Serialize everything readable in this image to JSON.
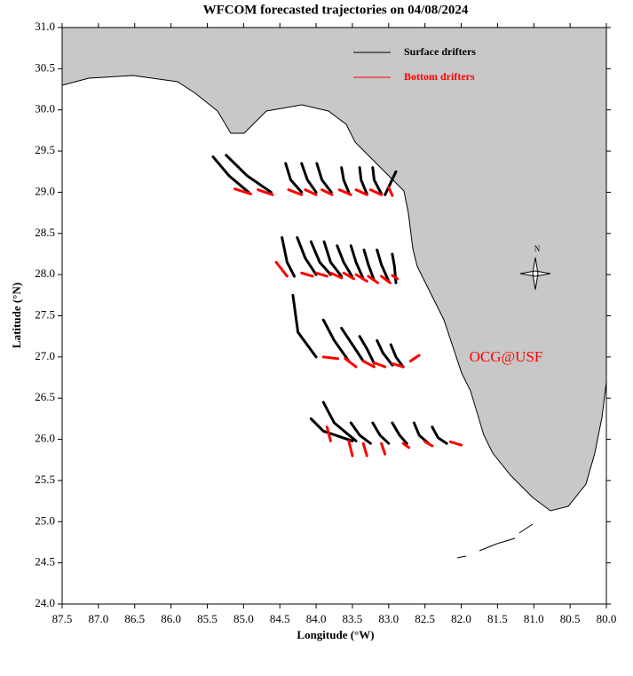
{
  "chart_data": {
    "type": "trajectory",
    "title": "WFCOM forecasted trajectories on 04/08/2024",
    "x_label": "Longitude (°W)",
    "y_label": "Latitude (°N)",
    "xlim": [
      87.5,
      80.0
    ],
    "ylim": [
      24.0,
      31.0
    ],
    "xticks": [
      {
        "value": 87.5,
        "label": "87.5"
      },
      {
        "value": 87,
        "label": "87.0"
      },
      {
        "value": 86.5,
        "label": "86.5"
      },
      {
        "value": 86,
        "label": "86.0"
      },
      {
        "value": 85.5,
        "label": "85.5"
      },
      {
        "value": 85,
        "label": "85.0"
      },
      {
        "value": 84.5,
        "label": "84.5"
      },
      {
        "value": 84,
        "label": "84.0"
      },
      {
        "value": 83.5,
        "label": "83.5"
      },
      {
        "value": 83,
        "label": "83.0"
      },
      {
        "value": 82.5,
        "label": "82.5"
      },
      {
        "value": 82,
        "label": "82.0"
      },
      {
        "value": 81.5,
        "label": "81.5"
      },
      {
        "value": 81,
        "label": "81.0"
      },
      {
        "value": 80.5,
        "label": "80.5"
      },
      {
        "value": 80,
        "label": "80.0"
      }
    ],
    "yticks": [
      {
        "value": 24,
        "label": "24.0"
      },
      {
        "value": 24.5,
        "label": "24.5"
      },
      {
        "value": 25,
        "label": "25.0"
      },
      {
        "value": 25.5,
        "label": "25.5"
      },
      {
        "value": 26,
        "label": "26.0"
      },
      {
        "value": 26.5,
        "label": "26.5"
      },
      {
        "value": 27,
        "label": "27.0"
      },
      {
        "value": 27.5,
        "label": "27.5"
      },
      {
        "value": 28,
        "label": "28.0"
      },
      {
        "value": 28.5,
        "label": "28.5"
      },
      {
        "value": 29,
        "label": "29.0"
      },
      {
        "value": 29.5,
        "label": "29.5"
      },
      {
        "value": 30,
        "label": "30.0"
      },
      {
        "value": 30.5,
        "label": "30.5"
      },
      {
        "value": 31,
        "label": "31.0"
      }
    ],
    "annotation": "OCG@USF",
    "compass_label": "N",
    "series": [
      {
        "name": "Surface drifters",
        "color": "#000000",
        "tracks": [
          {
            "x": [
              85.42,
              85.2,
              84.93
            ],
            "values": [
              29.43,
              29.2,
              29.0
            ]
          },
          {
            "x": [
              85.24,
              84.95,
              84.62
            ],
            "values": [
              29.45,
              29.2,
              29.0
            ]
          },
          {
            "x": [
              84.42,
              84.35,
              84.2
            ],
            "values": [
              29.35,
              29.15,
              29.0
            ]
          },
          {
            "x": [
              84.2,
              84.12,
              84.0
            ],
            "values": [
              29.35,
              29.15,
              29.0
            ]
          },
          {
            "x": [
              83.99,
              83.92,
              83.79
            ],
            "values": [
              29.35,
              29.15,
              29.0
            ]
          },
          {
            "x": [
              83.65,
              83.62,
              83.55
            ],
            "values": [
              29.3,
              29.15,
              29.0
            ]
          },
          {
            "x": [
              83.4,
              83.38,
              83.3
            ],
            "values": [
              29.3,
              29.15,
              28.98
            ]
          },
          {
            "x": [
              83.22,
              83.2,
              83.1
            ],
            "values": [
              29.3,
              29.15,
              28.98
            ]
          },
          {
            "x": [
              82.9,
              82.98,
              83.05
            ],
            "values": [
              29.25,
              29.1,
              28.97
            ]
          },
          {
            "x": [
              84.47,
              84.4,
              84.3
            ],
            "values": [
              28.45,
              28.15,
              27.98
            ]
          },
          {
            "x": [
              84.26,
              84.15,
              84.0
            ],
            "values": [
              28.45,
              28.2,
              28.0
            ]
          },
          {
            "x": [
              84.07,
              83.95,
              83.8
            ],
            "values": [
              28.4,
              28.15,
              28.0
            ]
          },
          {
            "x": [
              83.89,
              83.8,
              83.65
            ],
            "values": [
              28.4,
              28.15,
              27.98
            ]
          },
          {
            "x": [
              83.71,
              83.62,
              83.5
            ],
            "values": [
              28.35,
              28.15,
              27.97
            ]
          },
          {
            "x": [
              83.52,
              83.45,
              83.35
            ],
            "values": [
              28.35,
              28.15,
              27.95
            ]
          },
          {
            "x": [
              83.34,
              83.28,
              83.2
            ],
            "values": [
              28.3,
              28.12,
              27.93
            ]
          },
          {
            "x": [
              83.16,
              83.1,
              83.0
            ],
            "values": [
              28.3,
              28.12,
              27.92
            ]
          },
          {
            "x": [
              82.95,
              82.92,
              82.9
            ],
            "values": [
              28.25,
              28.1,
              27.9
            ]
          },
          {
            "x": [
              84.32,
              84.25,
              84.0
            ],
            "values": [
              27.75,
              27.3,
              27.0
            ]
          },
          {
            "x": [
              83.9,
              83.75,
              83.55
            ],
            "values": [
              27.45,
              27.2,
              26.95
            ]
          },
          {
            "x": [
              83.65,
              83.5,
              83.35
            ],
            "values": [
              27.35,
              27.15,
              26.95
            ]
          },
          {
            "x": [
              83.4,
              83.3,
              83.2
            ],
            "values": [
              27.25,
              27.1,
              26.92
            ]
          },
          {
            "x": [
              83.16,
              83.08,
              82.95
            ],
            "values": [
              27.2,
              27.05,
              26.9
            ]
          },
          {
            "x": [
              82.97,
              82.9,
              82.8
            ],
            "values": [
              27.15,
              27.0,
              26.88
            ]
          },
          {
            "x": [
              84.07,
              83.9,
              83.5
            ],
            "values": [
              26.25,
              26.1,
              25.98
            ]
          },
          {
            "x": [
              83.9,
              83.75,
              83.45
            ],
            "values": [
              26.45,
              26.2,
              25.98
            ]
          },
          {
            "x": [
              83.52,
              83.4,
              83.25
            ],
            "values": [
              26.2,
              26.05,
              25.95
            ]
          },
          {
            "x": [
              83.22,
              83.12,
              83.0
            ],
            "values": [
              26.2,
              26.05,
              25.95
            ]
          },
          {
            "x": [
              82.95,
              82.85,
              82.75
            ],
            "values": [
              26.2,
              26.05,
              25.95
            ]
          },
          {
            "x": [
              82.65,
              82.58,
              82.45
            ],
            "values": [
              26.2,
              26.05,
              25.95
            ]
          },
          {
            "x": [
              82.4,
              82.32,
              82.2
            ],
            "values": [
              26.15,
              26.02,
              25.95
            ]
          }
        ]
      },
      {
        "name": "Bottom drifters",
        "color": "#ff0000",
        "tracks": [
          {
            "x": [
              85.12,
              84.9
            ],
            "values": [
              29.04,
              28.98
            ]
          },
          {
            "x": [
              84.8,
              84.6
            ],
            "values": [
              29.03,
              28.97
            ]
          },
          {
            "x": [
              84.38,
              84.2
            ],
            "values": [
              29.03,
              28.97
            ]
          },
          {
            "x": [
              84.15,
              84.0
            ],
            "values": [
              29.03,
              28.97
            ]
          },
          {
            "x": [
              83.92,
              83.78
            ],
            "values": [
              29.03,
              28.97
            ]
          },
          {
            "x": [
              83.68,
              83.52
            ],
            "values": [
              29.03,
              28.97
            ]
          },
          {
            "x": [
              83.45,
              83.3
            ],
            "values": [
              29.03,
              28.97
            ]
          },
          {
            "x": [
              83.25,
              83.1
            ],
            "values": [
              29.03,
              28.97
            ]
          },
          {
            "x": [
              83.0,
              82.95
            ],
            "values": [
              29.06,
              28.96
            ]
          },
          {
            "x": [
              84.55,
              84.4
            ],
            "values": [
              28.15,
              27.98
            ]
          },
          {
            "x": [
              84.2,
              84.05
            ],
            "values": [
              28.02,
              27.98
            ]
          },
          {
            "x": [
              84.0,
              83.85
            ],
            "values": [
              28.02,
              27.98
            ]
          },
          {
            "x": [
              83.8,
              83.65
            ],
            "values": [
              28.02,
              27.96
            ]
          },
          {
            "x": [
              83.62,
              83.48
            ],
            "values": [
              28.02,
              27.95
            ]
          },
          {
            "x": [
              83.45,
              83.3
            ],
            "values": [
              28.0,
              27.92
            ]
          },
          {
            "x": [
              83.28,
              83.15
            ],
            "values": [
              27.98,
              27.9
            ]
          },
          {
            "x": [
              83.1,
              82.98
            ],
            "values": [
              27.98,
              27.9
            ]
          },
          {
            "x": [
              82.95,
              82.88
            ],
            "values": [
              27.99,
              27.95
            ]
          },
          {
            "x": [
              83.9,
              83.7
            ],
            "values": [
              27.0,
              26.98
            ]
          },
          {
            "x": [
              83.6,
              83.45
            ],
            "values": [
              26.98,
              26.88
            ]
          },
          {
            "x": [
              83.35,
              83.2
            ],
            "values": [
              26.95,
              26.88
            ]
          },
          {
            "x": [
              83.2,
              83.05
            ],
            "values": [
              26.93,
              26.88
            ]
          },
          {
            "x": [
              82.95,
              82.8
            ],
            "values": [
              26.92,
              26.88
            ]
          },
          {
            "x": [
              82.7,
              82.58
            ],
            "values": [
              26.95,
              27.02
            ]
          },
          {
            "x": [
              83.85,
              83.8
            ],
            "values": [
              26.15,
              25.98
            ]
          },
          {
            "x": [
              83.55,
              83.5
            ],
            "values": [
              25.98,
              25.8
            ]
          },
          {
            "x": [
              83.35,
              83.3
            ],
            "values": [
              25.95,
              25.8
            ]
          },
          {
            "x": [
              83.1,
              83.05
            ],
            "values": [
              25.95,
              25.82
            ]
          },
          {
            "x": [
              82.8,
              82.72
            ],
            "values": [
              25.95,
              25.9
            ]
          },
          {
            "x": [
              82.5,
              82.4
            ],
            "values": [
              25.97,
              25.92
            ]
          },
          {
            "x": [
              82.15,
              82.0
            ],
            "values": [
              25.97,
              25.93
            ]
          }
        ]
      }
    ]
  }
}
